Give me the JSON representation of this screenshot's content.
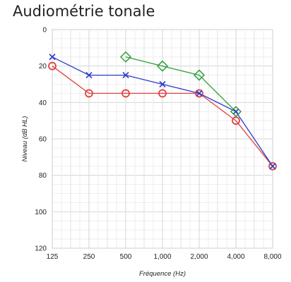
{
  "title": "Audiométrie tonale",
  "chart_data": {
    "type": "line",
    "title": "Audiométrie tonale",
    "xlabel": "Fréquence (Hz)",
    "ylabel": "Niveau (dB HL)",
    "x": [
      125,
      250,
      500,
      1000,
      2000,
      4000,
      8000
    ],
    "categories": [
      "125",
      "250",
      "500",
      "1,000",
      "2,000",
      "4,000",
      "8,000"
    ],
    "x_scale": "log",
    "ylim": [
      0,
      120
    ],
    "y_inverted": true,
    "yticks": [
      0,
      20,
      40,
      60,
      80,
      100,
      120
    ],
    "grid": true,
    "series": [
      {
        "marker": "circle",
        "color": "#e0413f",
        "values": [
          20,
          35,
          35,
          35,
          35,
          50,
          75
        ]
      },
      {
        "marker": "x",
        "color": "#2c3cc8",
        "values": [
          15,
          25,
          25,
          30,
          35,
          45,
          75
        ]
      },
      {
        "marker": "diamond",
        "color": "#2f9e3a",
        "values": [
          null,
          null,
          15,
          20,
          25,
          45,
          null
        ]
      }
    ]
  }
}
